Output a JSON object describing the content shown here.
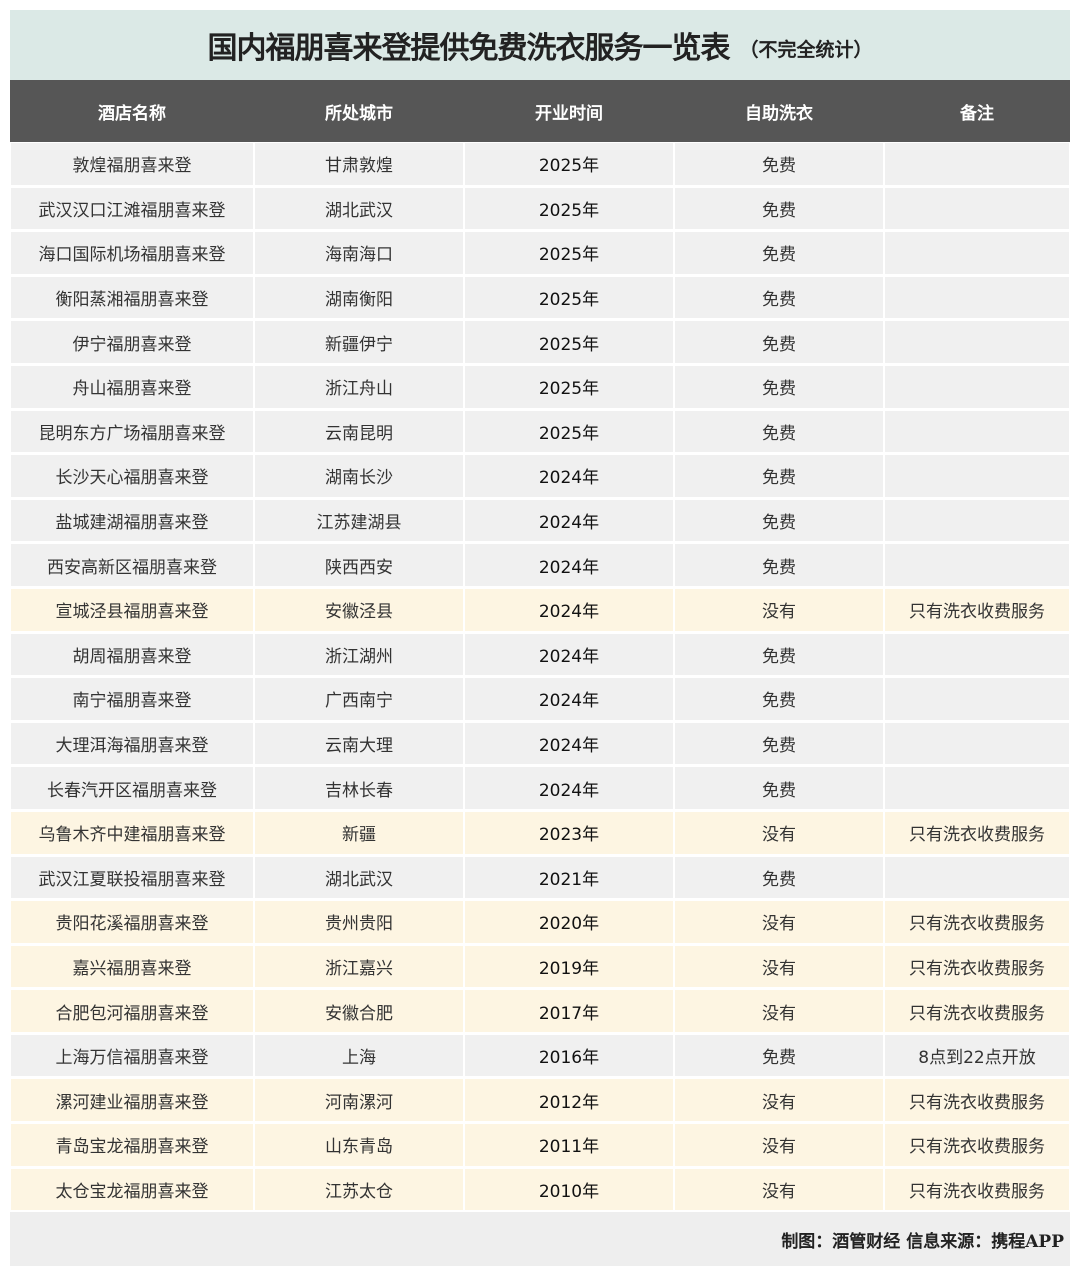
{
  "title": {
    "main": "国内福朋喜来登提供免费洗衣服务一览表",
    "sub": "（不完全统计）"
  },
  "columns": [
    "酒店名称",
    "所处城市",
    "开业时间",
    "自助洗衣",
    "备注"
  ],
  "colors": {
    "title_bg": "#dbe9e6",
    "header_bg": "#565656",
    "row_bg": "#f0f0f0",
    "highlight_bg": "#fdf5e2"
  },
  "rows": [
    {
      "name": "敦煌福朋喜来登",
      "city": "甘肃敦煌",
      "year": "2025年",
      "laundry": "免费",
      "note": "",
      "highlight": false
    },
    {
      "name": "武汉汉口江滩福朋喜来登",
      "city": "湖北武汉",
      "year": "2025年",
      "laundry": "免费",
      "note": "",
      "highlight": false
    },
    {
      "name": "海口国际机场福朋喜来登",
      "city": "海南海口",
      "year": "2025年",
      "laundry": "免费",
      "note": "",
      "highlight": false
    },
    {
      "name": "衡阳蒸湘福朋喜来登",
      "city": "湖南衡阳",
      "year": "2025年",
      "laundry": "免费",
      "note": "",
      "highlight": false
    },
    {
      "name": "伊宁福朋喜来登",
      "city": "新疆伊宁",
      "year": "2025年",
      "laundry": "免费",
      "note": "",
      "highlight": false
    },
    {
      "name": "舟山福朋喜来登",
      "city": "浙江舟山",
      "year": "2025年",
      "laundry": "免费",
      "note": "",
      "highlight": false
    },
    {
      "name": "昆明东方广场福朋喜来登",
      "city": "云南昆明",
      "year": "2025年",
      "laundry": "免费",
      "note": "",
      "highlight": false
    },
    {
      "name": "长沙天心福朋喜来登",
      "city": "湖南长沙",
      "year": "2024年",
      "laundry": "免费",
      "note": "",
      "highlight": false
    },
    {
      "name": "盐城建湖福朋喜来登",
      "city": "江苏建湖县",
      "year": "2024年",
      "laundry": "免费",
      "note": "",
      "highlight": false
    },
    {
      "name": "西安高新区福朋喜来登",
      "city": "陕西西安",
      "year": "2024年",
      "laundry": "免费",
      "note": "",
      "highlight": false
    },
    {
      "name": "宣城泾县福朋喜来登",
      "city": "安徽泾县",
      "year": "2024年",
      "laundry": "没有",
      "note": "只有洗衣收费服务",
      "highlight": true
    },
    {
      "name": "胡周福朋喜来登",
      "city": "浙江湖州",
      "year": "2024年",
      "laundry": "免费",
      "note": "",
      "highlight": false
    },
    {
      "name": "南宁福朋喜来登",
      "city": "广西南宁",
      "year": "2024年",
      "laundry": "免费",
      "note": "",
      "highlight": false
    },
    {
      "name": "大理洱海福朋喜来登",
      "city": "云南大理",
      "year": "2024年",
      "laundry": "免费",
      "note": "",
      "highlight": false
    },
    {
      "name": "长春汽开区福朋喜来登",
      "city": "吉林长春",
      "year": "2024年",
      "laundry": "免费",
      "note": "",
      "highlight": false
    },
    {
      "name": "乌鲁木齐中建福朋喜来登",
      "city": "新疆",
      "year": "2023年",
      "laundry": "没有",
      "note": "只有洗衣收费服务",
      "highlight": true
    },
    {
      "name": "武汉江夏联投福朋喜来登",
      "city": "湖北武汉",
      "year": "2021年",
      "laundry": "免费",
      "note": "",
      "highlight": false
    },
    {
      "name": "贵阳花溪福朋喜来登",
      "city": "贵州贵阳",
      "year": "2020年",
      "laundry": "没有",
      "note": "只有洗衣收费服务",
      "highlight": true
    },
    {
      "name": "嘉兴福朋喜来登",
      "city": "浙江嘉兴",
      "year": "2019年",
      "laundry": "没有",
      "note": "只有洗衣收费服务",
      "highlight": true
    },
    {
      "name": "合肥包河福朋喜来登",
      "city": "安徽合肥",
      "year": "2017年",
      "laundry": "没有",
      "note": "只有洗衣收费服务",
      "highlight": true
    },
    {
      "name": "上海万信福朋喜来登",
      "city": "上海",
      "year": "2016年",
      "laundry": "免费",
      "note": "8点到22点开放",
      "highlight": false
    },
    {
      "name": "漯河建业福朋喜来登",
      "city": "河南漯河",
      "year": "2012年",
      "laundry": "没有",
      "note": "只有洗衣收费服务",
      "highlight": true
    },
    {
      "name": "青岛宝龙福朋喜来登",
      "city": "山东青岛",
      "year": "2011年",
      "laundry": "没有",
      "note": "只有洗衣收费服务",
      "highlight": true
    },
    {
      "name": "太仓宝龙福朋喜来登",
      "city": "江苏太仓",
      "year": "2010年",
      "laundry": "没有",
      "note": "只有洗衣收费服务",
      "highlight": true
    }
  ],
  "footer": "制图：酒管财经  信息来源：携程APP"
}
